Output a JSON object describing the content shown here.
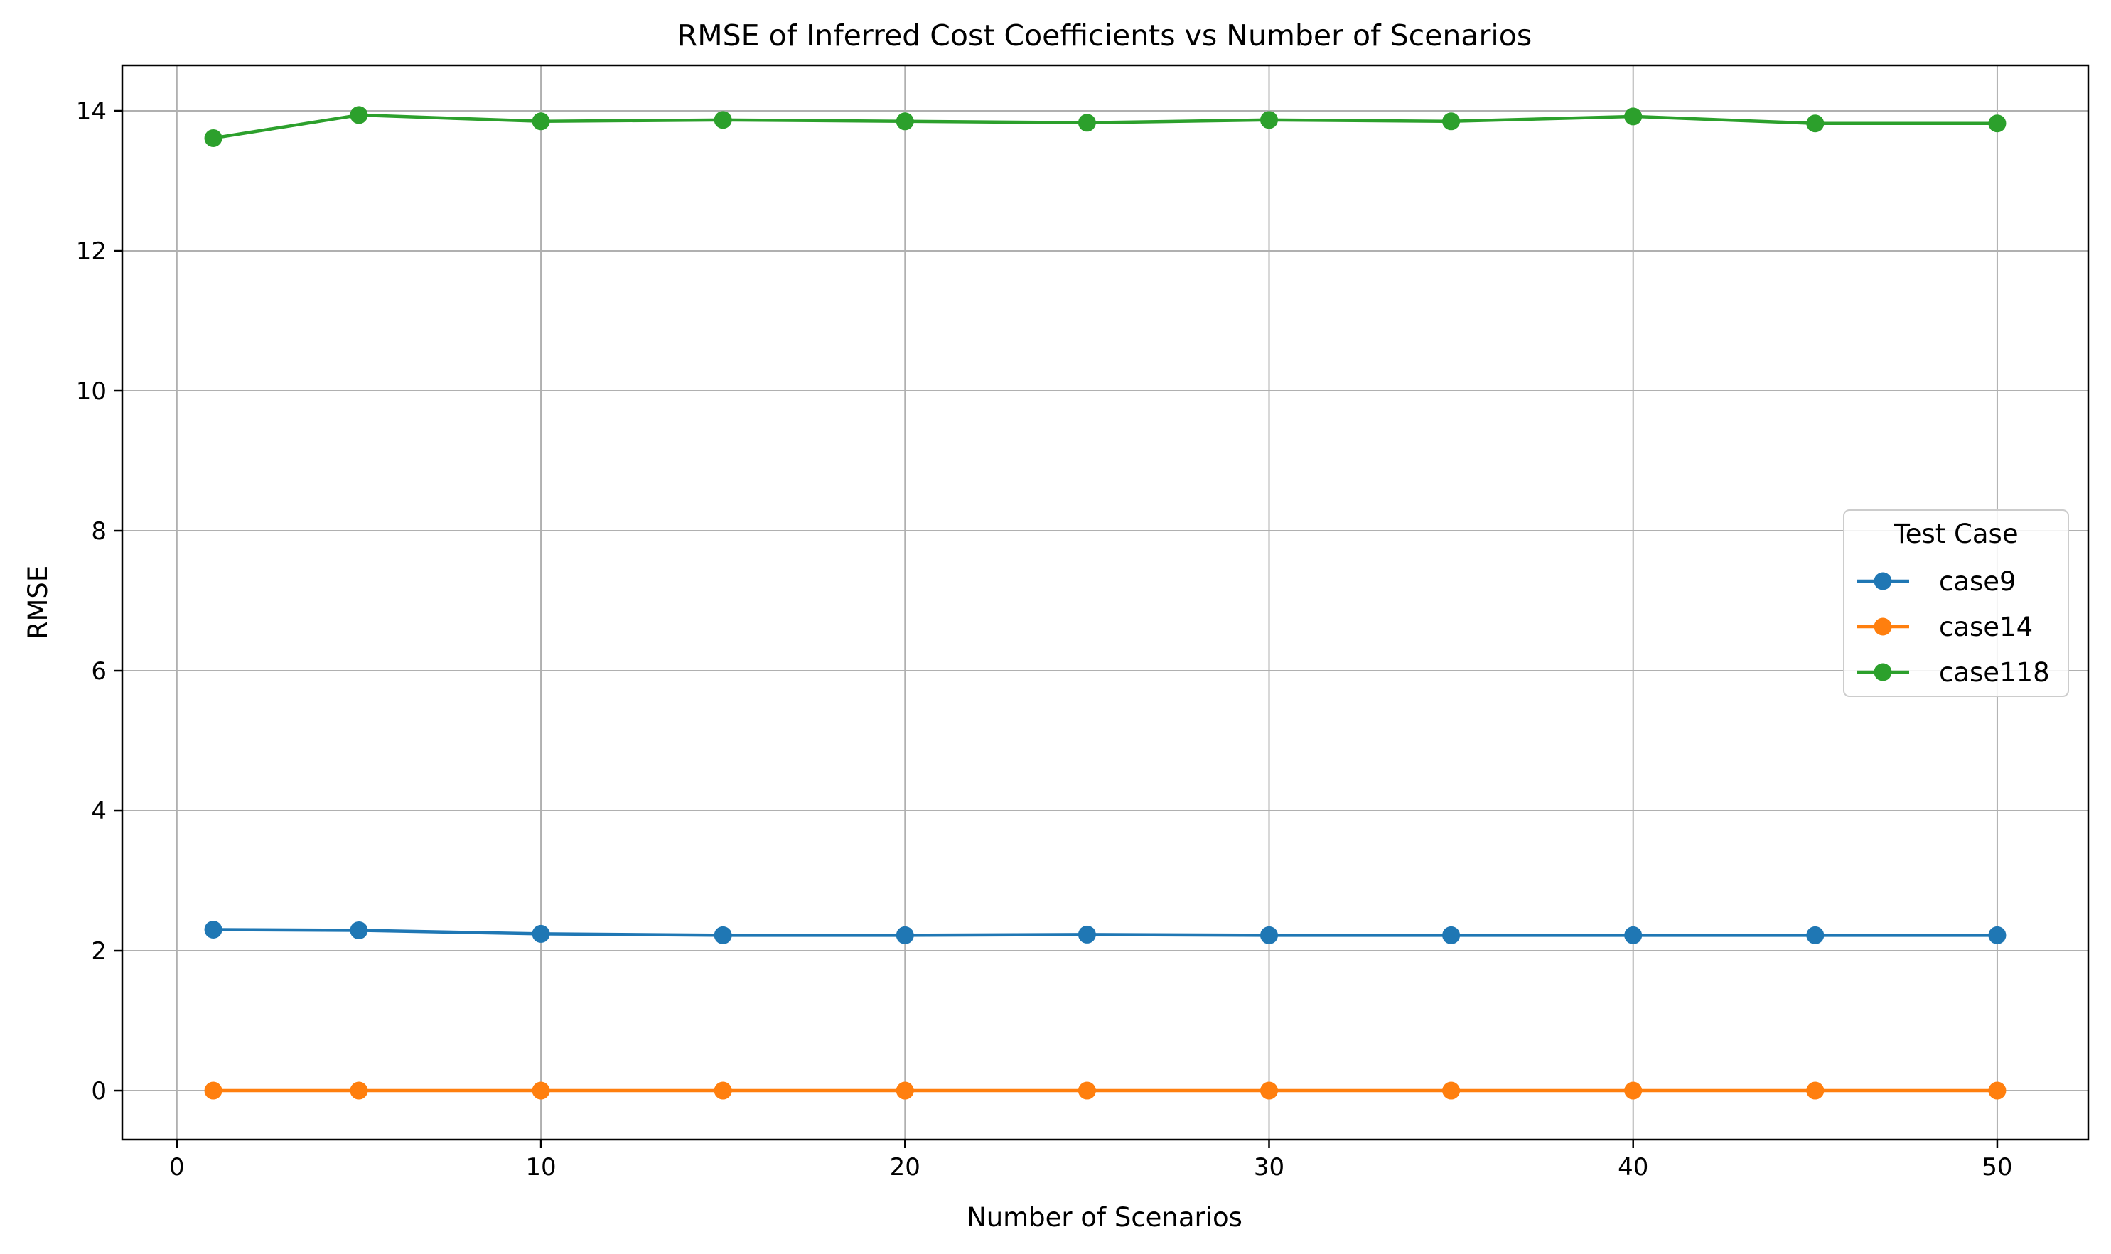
{
  "chart_data": {
    "type": "line",
    "title": "RMSE of Inferred Cost Coefficients vs Number of Scenarios",
    "xlabel": "Number of Scenarios",
    "ylabel": "RMSE",
    "xlim": [
      -1.5,
      52.5
    ],
    "ylim": [
      -0.7,
      14.65
    ],
    "xticks": [
      0,
      10,
      20,
      30,
      40,
      50
    ],
    "yticks": [
      0,
      2,
      4,
      6,
      8,
      10,
      12,
      14
    ],
    "grid": true,
    "legend": {
      "title": "Test Case",
      "placement": "center-right"
    },
    "x": [
      1,
      5,
      10,
      15,
      20,
      25,
      30,
      35,
      40,
      45,
      50
    ],
    "series": [
      {
        "name": "case9",
        "color": "#1f77b4",
        "values": [
          2.3,
          2.29,
          2.24,
          2.22,
          2.22,
          2.23,
          2.22,
          2.22,
          2.22,
          2.22,
          2.22
        ]
      },
      {
        "name": "case14",
        "color": "#ff7f0e",
        "values": [
          0.0,
          0.0,
          0.0,
          0.0,
          0.0,
          0.0,
          0.0,
          0.0,
          0.0,
          0.0,
          0.0
        ]
      },
      {
        "name": "case118",
        "color": "#2ca02c",
        "values": [
          13.61,
          13.94,
          13.85,
          13.87,
          13.85,
          13.83,
          13.87,
          13.85,
          13.92,
          13.82,
          13.82
        ]
      }
    ]
  }
}
